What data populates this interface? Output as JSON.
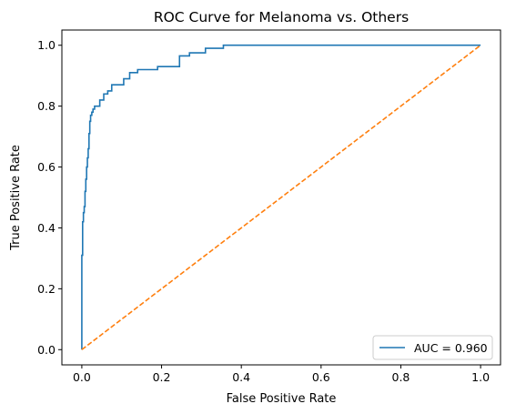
{
  "chart_data": {
    "type": "line",
    "title": "ROC Curve for Melanoma vs. Others",
    "xlabel": "False Positive Rate",
    "ylabel": "True Positive Rate",
    "xlim": [
      -0.05,
      1.05
    ],
    "ylim": [
      -0.05,
      1.05
    ],
    "xticks": [
      0.0,
      0.2,
      0.4,
      0.6,
      0.8,
      1.0
    ],
    "yticks": [
      0.0,
      0.2,
      0.4,
      0.6,
      0.8,
      1.0
    ],
    "xtick_labels": [
      "0.0",
      "0.2",
      "0.4",
      "0.6",
      "0.8",
      "1.0"
    ],
    "ytick_labels": [
      "0.0",
      "0.2",
      "0.4",
      "0.6",
      "0.8",
      "1.0"
    ],
    "grid": false,
    "legend_position": "bottom-right",
    "series": [
      {
        "name": "AUC = 0.960",
        "color": "#1f77b4",
        "style": "solid",
        "step": true,
        "x": [
          0.0,
          0.0,
          0.002,
          0.002,
          0.004,
          0.004,
          0.006,
          0.006,
          0.008,
          0.008,
          0.01,
          0.01,
          0.012,
          0.012,
          0.014,
          0.014,
          0.016,
          0.016,
          0.018,
          0.018,
          0.02,
          0.02,
          0.022,
          0.022,
          0.025,
          0.025,
          0.028,
          0.028,
          0.032,
          0.032,
          0.037,
          0.037,
          0.045,
          0.045,
          0.055,
          0.055,
          0.065,
          0.065,
          0.075,
          0.075,
          0.085,
          0.085,
          0.105,
          0.105,
          0.12,
          0.12,
          0.14,
          0.14,
          0.19,
          0.19,
          0.245,
          0.245,
          0.27,
          0.27,
          0.31,
          0.31,
          0.355,
          0.355,
          1.0
        ],
        "y": [
          0.0,
          0.31,
          0.31,
          0.42,
          0.42,
          0.45,
          0.45,
          0.47,
          0.47,
          0.52,
          0.52,
          0.56,
          0.56,
          0.6,
          0.6,
          0.63,
          0.63,
          0.66,
          0.66,
          0.71,
          0.71,
          0.75,
          0.75,
          0.77,
          0.77,
          0.78,
          0.78,
          0.79,
          0.79,
          0.8,
          0.8,
          0.8,
          0.8,
          0.82,
          0.82,
          0.84,
          0.84,
          0.85,
          0.85,
          0.87,
          0.87,
          0.87,
          0.87,
          0.89,
          0.89,
          0.91,
          0.91,
          0.92,
          0.92,
          0.93,
          0.93,
          0.965,
          0.965,
          0.975,
          0.975,
          0.99,
          0.99,
          1.0,
          1.0
        ]
      },
      {
        "name": "",
        "color": "#ff7f0e",
        "style": "dashed",
        "x": [
          0.0,
          1.0
        ],
        "y": [
          0.0,
          1.0
        ]
      }
    ]
  }
}
